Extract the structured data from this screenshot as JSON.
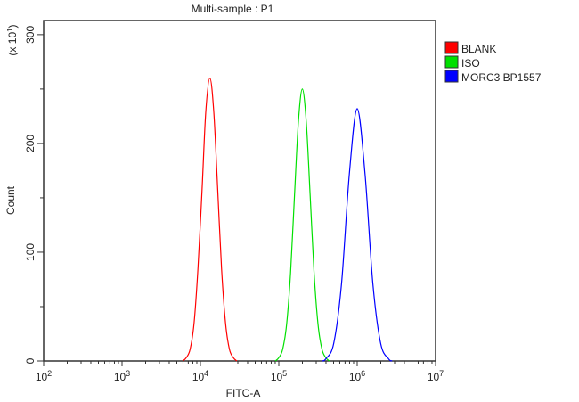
{
  "chart_data": {
    "type": "line",
    "title": "Multi-sample : P1",
    "xlabel": "FITC-A",
    "ylabel": "Count",
    "y_multiplier_label": "(x 10",
    "y_multiplier_exp": "1",
    "y_multiplier_close": ")",
    "x_scale": "log",
    "xlim": [
      100,
      10000000
    ],
    "ylim": [
      0,
      313
    ],
    "x_ticks": [
      {
        "base": "10",
        "exp": "2"
      },
      {
        "base": "10",
        "exp": "3"
      },
      {
        "base": "10",
        "exp": "4"
      },
      {
        "base": "10",
        "exp": "5"
      },
      {
        "base": "10",
        "exp": "6"
      },
      {
        "base": "10",
        "exp": "7"
      }
    ],
    "y_ticks": [
      "0",
      "100",
      "200",
      "300"
    ],
    "grid": false,
    "legend_position": "right",
    "series": [
      {
        "name": "BLANK",
        "color": "#ff0000",
        "x": [
          6600,
          7400,
          8300,
          9300,
          10500,
          11700,
          13200,
          14800,
          16600,
          18600,
          20900,
          23400,
          26300
        ],
        "y": [
          3,
          11,
          35,
          85,
          158,
          229,
          260,
          229,
          158,
          85,
          35,
          11,
          3
        ]
      },
      {
        "name": "ISO",
        "color": "#00e000",
        "x": [
          100000,
          112200,
          125900,
          141300,
          158500,
          177800,
          199500,
          223900,
          251200,
          281800,
          316200,
          354800,
          398100
        ],
        "y": [
          3,
          11,
          34,
          81,
          152,
          220,
          250,
          220,
          152,
          81,
          34,
          11,
          3
        ]
      },
      {
        "name": "MORC3 BP1557",
        "color": "#0000ff",
        "x": [
          398100,
          501200,
          631000,
          794300,
          1000000,
          1258900,
          1584900,
          1995300,
          2511900
        ],
        "y": [
          2,
          16,
          71,
          172,
          232,
          172,
          71,
          16,
          2
        ]
      }
    ]
  }
}
